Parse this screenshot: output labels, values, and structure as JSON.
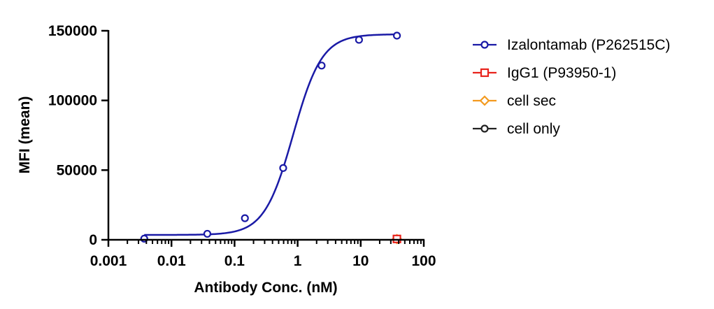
{
  "chart_data": {
    "type": "scatter",
    "title": "",
    "xlabel": "Antibody Conc. (nM)",
    "ylabel": "MFI (mean)",
    "x_scale": "log",
    "xlim": [
      0.001,
      100
    ],
    "ylim": [
      0,
      150000
    ],
    "x_ticks": [
      {
        "value": 0.001,
        "label": "0.001"
      },
      {
        "value": 0.01,
        "label": "0.01"
      },
      {
        "value": 0.1,
        "label": "0.1"
      },
      {
        "value": 1,
        "label": "1"
      },
      {
        "value": 10,
        "label": "10"
      },
      {
        "value": 100,
        "label": "100"
      }
    ],
    "y_ticks": [
      {
        "value": 0,
        "label": "0"
      },
      {
        "value": 50000,
        "label": "50000"
      },
      {
        "value": 100000,
        "label": "100000"
      },
      {
        "value": 150000,
        "label": "150000"
      }
    ],
    "grid": false,
    "legend_position": "right",
    "fit": {
      "model": "4PL",
      "series": "Izalontamab (P262515C)",
      "bottom": 3500,
      "top": 147500,
      "ec50": 0.85,
      "hill": 1.9
    },
    "series": [
      {
        "name": "Izalontamab (P262515C)",
        "color": "#1a1aa6",
        "marker": "circle",
        "x": [
          0.0037,
          0.037,
          0.146,
          0.59,
          2.4,
          9.4,
          37.5
        ],
        "y": [
          800,
          4300,
          15500,
          51500,
          125000,
          143500,
          146500
        ]
      },
      {
        "name": "IgG1 (P93950-1)",
        "color": "#e8231c",
        "marker": "square",
        "x": [
          37.5
        ],
        "y": [
          600
        ]
      },
      {
        "name": "cell sec",
        "color": "#f39a1f",
        "marker": "diamond",
        "x": [
          37.5
        ],
        "y": [
          500
        ]
      },
      {
        "name": "cell only",
        "color": "#222222",
        "marker": "circle",
        "x": [
          37.5
        ],
        "y": [
          400
        ]
      }
    ]
  }
}
